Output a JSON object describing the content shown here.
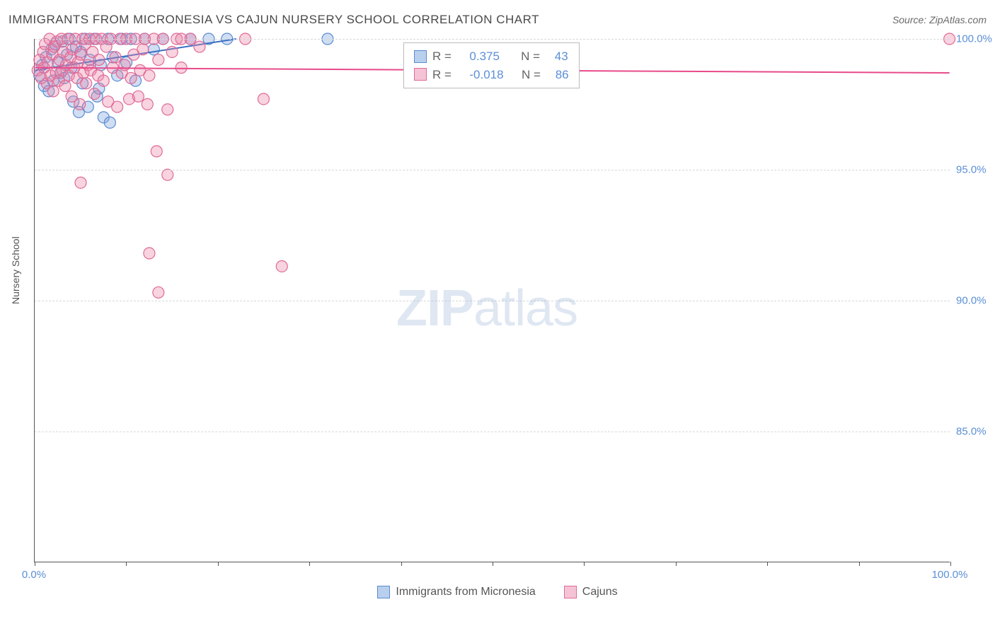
{
  "title": "IMMIGRANTS FROM MICRONESIA VS CAJUN NURSERY SCHOOL CORRELATION CHART",
  "source": "Source: ZipAtlas.com",
  "watermark_bold": "ZIP",
  "watermark_light": "atlas",
  "y_axis_title": "Nursery School",
  "chart": {
    "type": "scatter",
    "xlim": [
      0,
      100
    ],
    "ylim": [
      80,
      100
    ],
    "y_ticks": [
      85.0,
      90.0,
      95.0,
      100.0
    ],
    "y_tick_labels": [
      "85.0%",
      "90.0%",
      "95.0%",
      "100.0%"
    ],
    "x_ticks": [
      0,
      10,
      20,
      30,
      40,
      50,
      60,
      70,
      80,
      90,
      100
    ],
    "x_tick_labels_shown": {
      "0": "0.0%",
      "100": "100.0%"
    },
    "background_color": "#ffffff",
    "grid_color": "#d8d8d8",
    "marker_radius": 8,
    "marker_stroke_width": 1.2,
    "marker_opacity": 0.55,
    "series": [
      {
        "name": "Immigrants from Micronesia",
        "color_fill": "rgba(120,160,220,0.35)",
        "color_stroke": "#5a8bd0",
        "swatch_fill": "#b8d0ee",
        "swatch_border": "#5a8bd0",
        "R": "0.375",
        "N": "43",
        "trend": {
          "x1": 0,
          "y1": 98.8,
          "x2": 22,
          "y2": 100.0,
          "color": "#3a6fc4",
          "width": 2
        },
        "points": [
          [
            0.5,
            98.6
          ],
          [
            0.8,
            99.0
          ],
          [
            1.0,
            98.2
          ],
          [
            1.2,
            99.3
          ],
          [
            1.5,
            98.0
          ],
          [
            1.8,
            99.6
          ],
          [
            2.0,
            98.4
          ],
          [
            2.2,
            99.8
          ],
          [
            2.5,
            99.1
          ],
          [
            2.8,
            98.7
          ],
          [
            3.0,
            99.9
          ],
          [
            3.2,
            98.5
          ],
          [
            3.5,
            99.4
          ],
          [
            3.8,
            100.0
          ],
          [
            4.0,
            98.9
          ],
          [
            4.2,
            97.6
          ],
          [
            4.5,
            99.7
          ],
          [
            4.8,
            97.2
          ],
          [
            5.0,
            99.5
          ],
          [
            5.2,
            98.3
          ],
          [
            5.5,
            100.0
          ],
          [
            5.8,
            97.4
          ],
          [
            6.0,
            99.2
          ],
          [
            6.5,
            100.0
          ],
          [
            6.8,
            97.8
          ],
          [
            7.0,
            98.1
          ],
          [
            7.2,
            99.0
          ],
          [
            7.5,
            97.0
          ],
          [
            8.0,
            100.0
          ],
          [
            8.2,
            96.8
          ],
          [
            8.5,
            99.3
          ],
          [
            9.0,
            98.6
          ],
          [
            9.5,
            100.0
          ],
          [
            10.0,
            99.1
          ],
          [
            10.5,
            100.0
          ],
          [
            11.0,
            98.4
          ],
          [
            12.0,
            100.0
          ],
          [
            13.0,
            99.6
          ],
          [
            14.0,
            100.0
          ],
          [
            17.0,
            100.0
          ],
          [
            19.0,
            100.0
          ],
          [
            21.0,
            100.0
          ],
          [
            32.0,
            100.0
          ]
        ]
      },
      {
        "name": "Cajuns",
        "color_fill": "rgba(235,130,165,0.35)",
        "color_stroke": "#e06a96",
        "swatch_fill": "#f4c4d6",
        "swatch_border": "#e06a96",
        "R": "-0.018",
        "N": "86",
        "trend": {
          "x1": 0,
          "y1": 98.9,
          "x2": 100,
          "y2": 98.7,
          "color": "#e84a8a",
          "width": 2
        },
        "points": [
          [
            0.3,
            98.8
          ],
          [
            0.5,
            99.2
          ],
          [
            0.7,
            98.5
          ],
          [
            0.9,
            99.5
          ],
          [
            1.0,
            98.9
          ],
          [
            1.1,
            99.8
          ],
          [
            1.3,
            98.3
          ],
          [
            1.4,
            99.1
          ],
          [
            1.6,
            100.0
          ],
          [
            1.7,
            98.6
          ],
          [
            1.9,
            99.4
          ],
          [
            2.0,
            98.0
          ],
          [
            2.1,
            99.7
          ],
          [
            2.3,
            98.7
          ],
          [
            2.4,
            99.9
          ],
          [
            2.6,
            98.4
          ],
          [
            2.7,
            99.2
          ],
          [
            2.9,
            100.0
          ],
          [
            3.0,
            98.8
          ],
          [
            3.1,
            99.5
          ],
          [
            3.3,
            98.2
          ],
          [
            3.4,
            99.0
          ],
          [
            3.6,
            100.0
          ],
          [
            3.7,
            98.6
          ],
          [
            3.9,
            99.3
          ],
          [
            4.0,
            97.8
          ],
          [
            4.1,
            99.6
          ],
          [
            4.3,
            98.9
          ],
          [
            4.4,
            100.0
          ],
          [
            4.6,
            98.5
          ],
          [
            4.7,
            99.1
          ],
          [
            4.9,
            97.5
          ],
          [
            5.0,
            99.4
          ],
          [
            5.2,
            100.0
          ],
          [
            5.3,
            98.7
          ],
          [
            5.5,
            99.8
          ],
          [
            5.6,
            98.3
          ],
          [
            5.8,
            99.0
          ],
          [
            6.0,
            100.0
          ],
          [
            6.1,
            98.8
          ],
          [
            6.3,
            99.5
          ],
          [
            6.5,
            97.9
          ],
          [
            6.7,
            100.0
          ],
          [
            6.9,
            98.6
          ],
          [
            7.0,
            99.2
          ],
          [
            7.3,
            100.0
          ],
          [
            7.5,
            98.4
          ],
          [
            7.8,
            99.7
          ],
          [
            8.0,
            97.6
          ],
          [
            8.3,
            100.0
          ],
          [
            8.5,
            98.9
          ],
          [
            8.8,
            99.3
          ],
          [
            9.0,
            97.4
          ],
          [
            9.3,
            100.0
          ],
          [
            9.5,
            98.7
          ],
          [
            9.8,
            99.0
          ],
          [
            10.0,
            100.0
          ],
          [
            10.3,
            97.7
          ],
          [
            10.5,
            98.5
          ],
          [
            10.8,
            99.4
          ],
          [
            11.0,
            100.0
          ],
          [
            11.3,
            97.8
          ],
          [
            11.5,
            98.8
          ],
          [
            11.8,
            99.6
          ],
          [
            12.0,
            100.0
          ],
          [
            12.3,
            97.5
          ],
          [
            12.5,
            98.6
          ],
          [
            13.0,
            100.0
          ],
          [
            13.3,
            95.7
          ],
          [
            13.5,
            99.2
          ],
          [
            14.0,
            100.0
          ],
          [
            14.5,
            97.3
          ],
          [
            15.0,
            99.5
          ],
          [
            15.5,
            100.0
          ],
          [
            16.0,
            98.9
          ],
          [
            17.0,
            100.0
          ],
          [
            18.0,
            99.7
          ],
          [
            5.0,
            94.5
          ],
          [
            12.5,
            91.8
          ],
          [
            13.5,
            90.3
          ],
          [
            14.5,
            94.8
          ],
          [
            25.0,
            97.7
          ],
          [
            27.0,
            91.3
          ],
          [
            16.0,
            100.0
          ],
          [
            23.0,
            100.0
          ],
          [
            100.0,
            100.0
          ]
        ]
      }
    ]
  },
  "labels": {
    "R_prefix": "R =",
    "N_prefix": "N ="
  }
}
